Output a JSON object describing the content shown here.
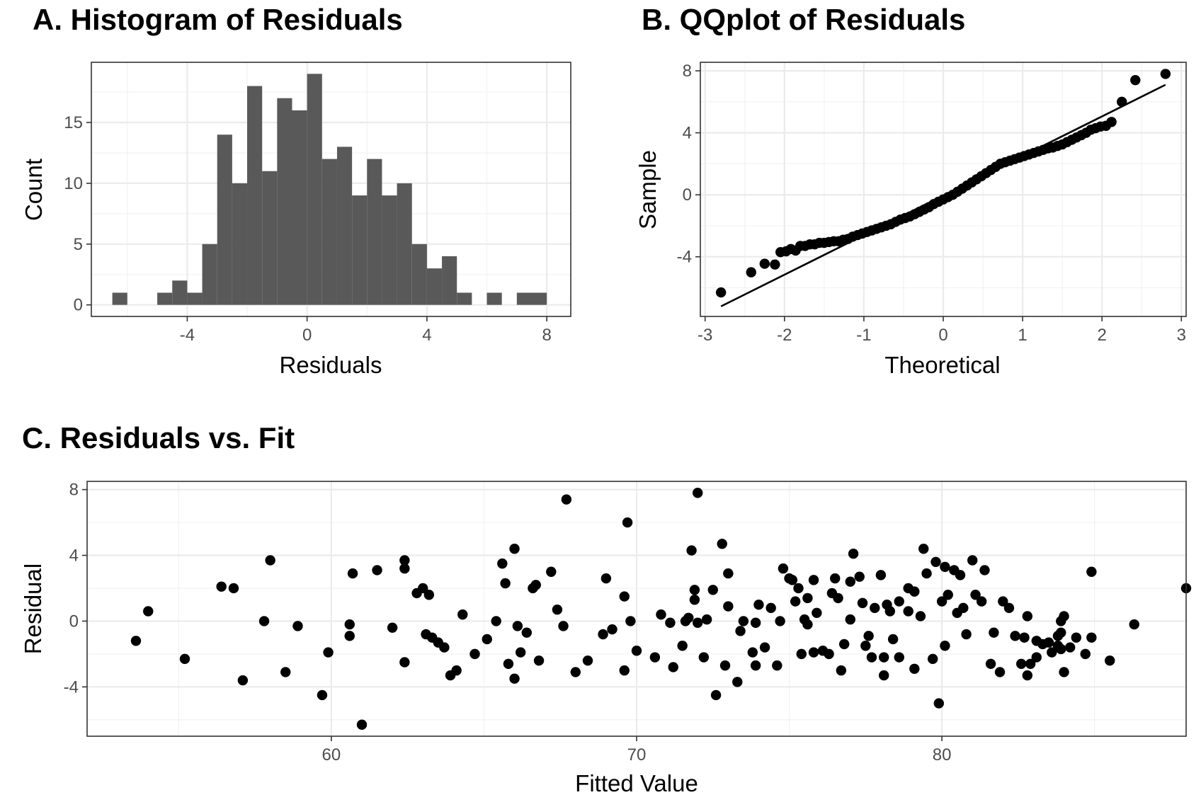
{
  "chart_data": [
    {
      "type": "bar",
      "title": "A. Histogram of Residuals",
      "xlabel": "Residuals",
      "ylabel": "Count",
      "xlim": [
        -7.2,
        8.8
      ],
      "ylim": [
        -0.95,
        19.95
      ],
      "x_ticks": [
        -4,
        0,
        4,
        8
      ],
      "y_ticks": [
        0,
        5,
        10,
        15
      ],
      "x_tick_labels": [
        "-4",
        "0",
        "4",
        "8"
      ],
      "y_tick_labels": [
        "0",
        "5",
        "10",
        "15"
      ],
      "grid": true,
      "bin_width": 0.5,
      "bins_start": [
        -6.5,
        -6,
        -5.5,
        -5,
        -4.5,
        -4,
        -3.5,
        -3,
        -2.5,
        -2,
        -1.5,
        -1,
        -0.5,
        0,
        0.5,
        1,
        1.5,
        2,
        2.5,
        3,
        3.5,
        4,
        4.5,
        5,
        5.5,
        6,
        6.5,
        7,
        7.5
      ],
      "values": [
        1,
        0,
        0,
        1,
        2,
        1,
        5,
        14,
        10,
        18,
        11,
        17,
        16,
        19,
        12,
        13,
        9,
        12,
        9,
        10,
        5,
        3,
        4,
        1,
        0,
        1,
        0,
        1,
        1
      ],
      "color": "#595959"
    },
    {
      "type": "scatter",
      "title": "B. QQplot of Residuals",
      "xlabel": "Theoretical",
      "ylabel": "Sample",
      "xlim": [
        -3.06,
        3.06
      ],
      "ylim": [
        -7.85,
        8.55
      ],
      "x_ticks": [
        -3,
        -2,
        -1,
        0,
        1,
        2,
        3
      ],
      "y_ticks": [
        -4,
        0,
        4,
        8
      ],
      "x_tick_labels": [
        "-3",
        "-2",
        "-1",
        "0",
        "1",
        "2",
        "3"
      ],
      "y_tick_labels": [
        "-4",
        "0",
        "4",
        "8"
      ],
      "grid": true,
      "line": {
        "x": [
          -2.8,
          2.8
        ],
        "y": [
          -7.2,
          7.1
        ]
      },
      "points": [
        [
          -2.8,
          -6.3
        ],
        [
          -2.42,
          -5.0
        ],
        [
          -2.25,
          -4.45
        ],
        [
          -2.12,
          -4.5
        ],
        [
          -2.05,
          -3.7
        ],
        [
          -1.98,
          -3.65
        ],
        [
          -1.92,
          -3.5
        ],
        [
          -1.86,
          -3.6
        ],
        [
          -1.8,
          -3.3
        ],
        [
          -1.74,
          -3.3
        ],
        [
          -1.68,
          -3.2
        ],
        [
          -1.62,
          -3.2
        ],
        [
          -1.56,
          -3.1
        ],
        [
          -1.5,
          -3.1
        ],
        [
          -1.44,
          -3.05
        ],
        [
          -1.38,
          -3.0
        ],
        [
          -1.32,
          -3.0
        ],
        [
          -1.26,
          -2.9
        ],
        [
          -1.2,
          -2.85
        ],
        [
          -1.14,
          -2.7
        ],
        [
          -1.08,
          -2.6
        ],
        [
          -1.02,
          -2.5
        ],
        [
          -0.96,
          -2.4
        ],
        [
          -0.9,
          -2.3
        ],
        [
          -0.84,
          -2.2
        ],
        [
          -0.78,
          -2.1
        ],
        [
          -0.72,
          -2.0
        ],
        [
          -0.66,
          -1.9
        ],
        [
          -0.6,
          -1.75
        ],
        [
          -0.54,
          -1.6
        ],
        [
          -0.48,
          -1.5
        ],
        [
          -0.42,
          -1.4
        ],
        [
          -0.36,
          -1.25
        ],
        [
          -0.3,
          -1.1
        ],
        [
          -0.24,
          -0.95
        ],
        [
          -0.18,
          -0.8
        ],
        [
          -0.12,
          -0.6
        ],
        [
          -0.06,
          -0.45
        ],
        [
          0.0,
          -0.3
        ],
        [
          0.06,
          -0.15
        ],
        [
          0.12,
          0.0
        ],
        [
          0.18,
          0.2
        ],
        [
          0.24,
          0.4
        ],
        [
          0.3,
          0.6
        ],
        [
          0.36,
          0.8
        ],
        [
          0.42,
          1.0
        ],
        [
          0.48,
          1.2
        ],
        [
          0.54,
          1.4
        ],
        [
          0.6,
          1.6
        ],
        [
          0.66,
          1.8
        ],
        [
          0.72,
          2.0
        ],
        [
          0.78,
          2.1
        ],
        [
          0.84,
          2.2
        ],
        [
          0.9,
          2.3
        ],
        [
          0.96,
          2.4
        ],
        [
          1.02,
          2.5
        ],
        [
          1.08,
          2.6
        ],
        [
          1.14,
          2.7
        ],
        [
          1.2,
          2.8
        ],
        [
          1.26,
          2.9
        ],
        [
          1.32,
          3.0
        ],
        [
          1.38,
          3.05
        ],
        [
          1.44,
          3.15
        ],
        [
          1.5,
          3.25
        ],
        [
          1.56,
          3.4
        ],
        [
          1.62,
          3.55
        ],
        [
          1.68,
          3.7
        ],
        [
          1.74,
          3.85
        ],
        [
          1.8,
          4.0
        ],
        [
          1.86,
          4.2
        ],
        [
          1.92,
          4.3
        ],
        [
          1.98,
          4.4
        ],
        [
          2.05,
          4.45
        ],
        [
          2.12,
          4.7
        ],
        [
          2.25,
          6.0
        ],
        [
          2.42,
          7.4
        ],
        [
          2.8,
          7.8
        ]
      ],
      "color": "#000000"
    },
    {
      "type": "scatter",
      "title": "C. Residuals vs. Fit",
      "xlabel": "Fitted Value",
      "ylabel": "Residual",
      "xlim": [
        52.0,
        88.0
      ],
      "ylim": [
        -7.0,
        8.5
      ],
      "x_ticks": [
        60,
        70,
        80
      ],
      "y_ticks": [
        -4,
        0,
        4,
        8
      ],
      "x_tick_labels": [
        "60",
        "70",
        "80"
      ],
      "y_tick_labels": [
        "-4",
        "0",
        "4",
        "8"
      ],
      "grid": true,
      "points": [
        [
          53.6,
          -1.2
        ],
        [
          54.0,
          0.6
        ],
        [
          55.2,
          -2.3
        ],
        [
          56.4,
          2.1
        ],
        [
          56.8,
          2.0
        ],
        [
          57.1,
          -3.6
        ],
        [
          57.8,
          0.0
        ],
        [
          58.0,
          3.7
        ],
        [
          58.5,
          -3.1
        ],
        [
          58.9,
          -0.3
        ],
        [
          59.7,
          -4.5
        ],
        [
          59.9,
          -1.9
        ],
        [
          60.6,
          -0.2
        ],
        [
          60.6,
          -0.9
        ],
        [
          60.7,
          2.9
        ],
        [
          61.0,
          -6.3
        ],
        [
          61.5,
          3.1
        ],
        [
          62.0,
          -0.4
        ],
        [
          62.4,
          3.7
        ],
        [
          62.4,
          3.2
        ],
        [
          62.4,
          -2.5
        ],
        [
          62.8,
          1.7
        ],
        [
          63.0,
          2.0
        ],
        [
          63.2,
          1.6
        ],
        [
          63.1,
          -0.8
        ],
        [
          63.3,
          -1.0
        ],
        [
          63.5,
          -1.3
        ],
        [
          63.7,
          -1.6
        ],
        [
          63.9,
          -3.3
        ],
        [
          64.1,
          -3.0
        ],
        [
          64.3,
          0.4
        ],
        [
          64.7,
          -2.0
        ],
        [
          65.1,
          -1.1
        ],
        [
          65.4,
          0.0
        ],
        [
          65.6,
          3.5
        ],
        [
          65.7,
          2.3
        ],
        [
          65.8,
          -2.6
        ],
        [
          66.0,
          4.4
        ],
        [
          66.1,
          -0.3
        ],
        [
          66.0,
          -3.5
        ],
        [
          66.2,
          -1.9
        ],
        [
          66.4,
          -0.7
        ],
        [
          66.6,
          2.0
        ],
        [
          66.7,
          2.2
        ],
        [
          66.8,
          -2.4
        ],
        [
          67.2,
          3.0
        ],
        [
          67.4,
          0.7
        ],
        [
          67.6,
          -0.3
        ],
        [
          67.7,
          7.4
        ],
        [
          68.0,
          -3.1
        ],
        [
          68.4,
          -2.4
        ],
        [
          68.9,
          -0.8
        ],
        [
          69.0,
          2.6
        ],
        [
          69.2,
          -0.5
        ],
        [
          69.6,
          -3.0
        ],
        [
          69.6,
          1.5
        ],
        [
          69.7,
          6.0
        ],
        [
          69.8,
          0.0
        ],
        [
          70.0,
          -1.8
        ],
        [
          70.6,
          -2.2
        ],
        [
          70.8,
          0.4
        ],
        [
          71.1,
          -0.1
        ],
        [
          71.2,
          -2.8
        ],
        [
          71.5,
          -1.5
        ],
        [
          71.6,
          0.0
        ],
        [
          71.7,
          0.2
        ],
        [
          71.8,
          4.3
        ],
        [
          71.9,
          1.9
        ],
        [
          71.9,
          1.3
        ],
        [
          72.0,
          7.8
        ],
        [
          72.0,
          -0.1
        ],
        [
          72.2,
          -2.2
        ],
        [
          72.3,
          0.1
        ],
        [
          72.5,
          1.9
        ],
        [
          72.6,
          -4.5
        ],
        [
          72.8,
          4.7
        ],
        [
          72.9,
          -2.7
        ],
        [
          73.0,
          2.9
        ],
        [
          73.0,
          0.9
        ],
        [
          73.3,
          -3.7
        ],
        [
          73.4,
          -0.6
        ],
        [
          73.5,
          0.0
        ],
        [
          73.8,
          -1.9
        ],
        [
          73.9,
          -2.7
        ],
        [
          73.9,
          -0.1
        ],
        [
          74.0,
          1.0
        ],
        [
          74.2,
          -1.6
        ],
        [
          74.4,
          0.8
        ],
        [
          74.6,
          -2.7
        ],
        [
          74.7,
          0.0
        ],
        [
          74.8,
          3.2
        ],
        [
          75.0,
          2.6
        ],
        [
          75.1,
          2.5
        ],
        [
          75.2,
          1.2
        ],
        [
          75.3,
          2.0
        ],
        [
          75.4,
          -2.0
        ],
        [
          75.5,
          0.1
        ],
        [
          75.6,
          -0.2
        ],
        [
          75.6,
          1.4
        ],
        [
          75.8,
          -1.9
        ],
        [
          75.8,
          2.5
        ],
        [
          75.9,
          0.5
        ],
        [
          76.1,
          -1.8
        ],
        [
          76.3,
          -2.0
        ],
        [
          76.4,
          1.7
        ],
        [
          76.5,
          2.6
        ],
        [
          76.6,
          1.4
        ],
        [
          76.7,
          -3.0
        ],
        [
          76.8,
          -1.4
        ],
        [
          77.0,
          0.1
        ],
        [
          77.0,
          2.4
        ],
        [
          77.1,
          4.1
        ],
        [
          77.3,
          2.7
        ],
        [
          77.4,
          1.1
        ],
        [
          77.6,
          -0.9
        ],
        [
          77.5,
          -1.5
        ],
        [
          77.7,
          -2.2
        ],
        [
          77.8,
          0.8
        ],
        [
          78.0,
          2.8
        ],
        [
          78.1,
          -3.3
        ],
        [
          78.1,
          -2.2
        ],
        [
          78.2,
          1.0
        ],
        [
          78.3,
          0.6
        ],
        [
          78.4,
          -1.1
        ],
        [
          78.6,
          -2.2
        ],
        [
          78.6,
          1.2
        ],
        [
          78.9,
          2.0
        ],
        [
          78.9,
          0.6
        ],
        [
          79.1,
          -2.9
        ],
        [
          79.1,
          1.8
        ],
        [
          79.3,
          0.3
        ],
        [
          79.4,
          4.4
        ],
        [
          79.5,
          2.9
        ],
        [
          79.8,
          3.6
        ],
        [
          79.7,
          -2.3
        ],
        [
          79.9,
          -5.0
        ],
        [
          80.0,
          1.2
        ],
        [
          80.1,
          -1.5
        ],
        [
          80.1,
          3.3
        ],
        [
          80.2,
          1.6
        ],
        [
          80.4,
          3.1
        ],
        [
          80.5,
          0.5
        ],
        [
          80.6,
          2.8
        ],
        [
          80.7,
          0.8
        ],
        [
          80.8,
          -0.8
        ],
        [
          81.0,
          3.7
        ],
        [
          81.1,
          1.6
        ],
        [
          81.3,
          1.2
        ],
        [
          81.4,
          3.1
        ],
        [
          81.6,
          -2.6
        ],
        [
          81.7,
          -0.7
        ],
        [
          81.9,
          -3.1
        ],
        [
          82.0,
          1.2
        ],
        [
          82.2,
          0.8
        ],
        [
          82.4,
          -0.9
        ],
        [
          82.6,
          -2.6
        ],
        [
          82.7,
          -1.0
        ],
        [
          82.8,
          0.3
        ],
        [
          82.8,
          -3.3
        ],
        [
          82.9,
          -2.6
        ],
        [
          83.1,
          -1.2
        ],
        [
          83.1,
          -2.2
        ],
        [
          83.3,
          -1.4
        ],
        [
          83.5,
          -1.3
        ],
        [
          83.6,
          -1.9
        ],
        [
          83.8,
          -1.5
        ],
        [
          83.8,
          -0.9
        ],
        [
          83.9,
          -0.7
        ],
        [
          83.9,
          0.0
        ],
        [
          83.9,
          -1.7
        ],
        [
          84.0,
          0.3
        ],
        [
          84.0,
          -3.1
        ],
        [
          84.2,
          -1.6
        ],
        [
          84.4,
          -1.0
        ],
        [
          84.7,
          -2.0
        ],
        [
          84.9,
          -1.0
        ],
        [
          84.9,
          3.0
        ],
        [
          85.5,
          -2.4
        ],
        [
          86.3,
          -0.2
        ],
        [
          88.0,
          2.0
        ]
      ],
      "color": "#000000"
    }
  ]
}
